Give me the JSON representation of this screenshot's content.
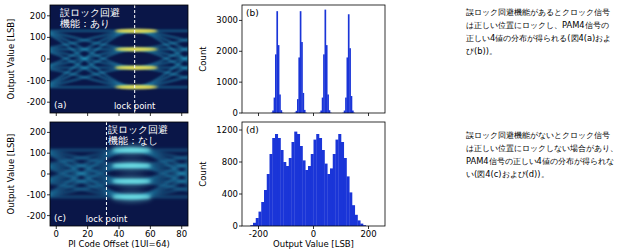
{
  "chart_data": [
    {
      "type": "eye_diagram",
      "panel_label": "(a)",
      "annotation": [
        "誤ロック回避",
        "機能：あり"
      ],
      "y_label": "Output Value [LSB]",
      "xlim": [
        -4,
        84
      ],
      "xticks": [
        0,
        20,
        40,
        60,
        80
      ],
      "ylim": [
        -250,
        250
      ],
      "yticks": [
        -200,
        -100,
        0,
        100,
        200
      ],
      "tick_labels": "y",
      "levels": [
        130,
        45,
        -40,
        -130
      ],
      "spread": 6,
      "crossings": [
        18,
        82
      ],
      "band_xrange": [
        38,
        64
      ],
      "lock_point": 50,
      "lock_point_label": "lock point",
      "color": "#2bb4d6",
      "colors": [
        "#ffe84a",
        "#ffe84a",
        "#ffe84a",
        "#ffe84a"
      ]
    },
    {
      "type": "histogram",
      "panel_label": "(b)",
      "y_label": "Count",
      "xlim": [
        -260,
        260
      ],
      "xticks": [
        -200,
        0,
        200
      ],
      "ylim": [
        0,
        3500
      ],
      "yticks": [
        0,
        1000,
        2000,
        3000
      ],
      "tick_labels": "y",
      "color": "#1a35d8",
      "bins": [
        -180,
        -175,
        -170,
        -165,
        -160,
        -155,
        -150,
        -145,
        -140,
        -135,
        -130,
        -125,
        -120,
        -115,
        -110,
        -105,
        -100,
        -95,
        -90,
        -85,
        -80,
        -75,
        -70,
        -65,
        -60,
        -55,
        -50,
        -45,
        -40,
        -35,
        -30,
        -25,
        -20,
        -15,
        -10,
        -5,
        0,
        5,
        10,
        15,
        20,
        25,
        30,
        35,
        40,
        45,
        50,
        55,
        60,
        65,
        70,
        75,
        80,
        85,
        90,
        95,
        100,
        105,
        110,
        115,
        120,
        125,
        130,
        135,
        140,
        145,
        150,
        155,
        160,
        165,
        170,
        175,
        180
      ],
      "values": [
        0,
        0,
        0,
        0,
        0,
        10,
        80,
        500,
        1900,
        3300,
        2200,
        600,
        90,
        10,
        0,
        0,
        0,
        0,
        0,
        0,
        0,
        0,
        10,
        70,
        450,
        1800,
        3300,
        2300,
        650,
        100,
        10,
        0,
        0,
        0,
        0,
        0,
        0,
        0,
        0,
        0,
        10,
        80,
        500,
        1900,
        3350,
        2200,
        600,
        90,
        10,
        0,
        0,
        0,
        0,
        0,
        0,
        0,
        0,
        10,
        80,
        500,
        1800,
        3200,
        2100,
        550,
        80,
        10,
        0,
        0,
        0,
        0,
        0,
        0
      ]
    },
    {
      "type": "eye_diagram",
      "panel_label": "(c)",
      "annotation": [
        "誤ロック回避",
        "機能：なし"
      ],
      "x_label": "PI Code Offset (1UI=64)",
      "y_label": "Output Value [LSB]",
      "xlim": [
        -4,
        84
      ],
      "xticks": [
        0,
        20,
        40,
        60,
        80
      ],
      "ylim": [
        -250,
        250
      ],
      "yticks": [
        -200,
        -100,
        0,
        100,
        200
      ],
      "levels": [
        115,
        40,
        -35,
        -110
      ],
      "spread": 16,
      "crossings": [
        16,
        80
      ],
      "band_xrange": [
        36,
        60
      ],
      "lock_point": 32,
      "lock_point_label": "lock point",
      "color": "#2bb4d6",
      "colors": [
        "#6fe0e6",
        "#6fe0e6",
        "#6fe0e6",
        "#6fe0e6"
      ]
    },
    {
      "type": "histogram",
      "panel_label": "(d)",
      "x_label": "Output Value [LSB]",
      "y_label": "Count",
      "xlim": [
        -260,
        260
      ],
      "xticks": [
        -200,
        0,
        200
      ],
      "ylim": [
        0,
        1300
      ],
      "yticks": [
        0,
        400,
        800,
        1200
      ],
      "color": "#1a35d8",
      "bins": [
        -240,
        -230,
        -220,
        -210,
        -200,
        -190,
        -180,
        -170,
        -160,
        -150,
        -140,
        -130,
        -120,
        -110,
        -100,
        -90,
        -80,
        -70,
        -60,
        -50,
        -40,
        -30,
        -20,
        -10,
        0,
        10,
        20,
        30,
        40,
        50,
        60,
        70,
        80,
        90,
        100,
        110,
        120,
        130,
        140,
        150,
        160,
        170,
        180,
        190,
        200
      ],
      "values": [
        0,
        10,
        40,
        100,
        180,
        300,
        450,
        650,
        900,
        1100,
        1150,
        1100,
        950,
        800,
        750,
        850,
        1050,
        1180,
        1150,
        1000,
        820,
        700,
        750,
        900,
        1080,
        1150,
        1100,
        950,
        780,
        650,
        720,
        900,
        1080,
        1150,
        1050,
        850,
        620,
        420,
        260,
        140,
        70,
        30,
        10,
        0
      ]
    }
  ],
  "text_blocks": [
    {
      "lines": [
        "誤ロック回避機能があるとクロック信号",
        "は正しい位置にロックし、PAM4信号の",
        "正しい4値の分布が得られる(図4(a)およ",
        "び(b))。"
      ]
    },
    {
      "lines": [
        "誤ロック回避機能がないとクロック信号",
        "は正しい位置にロックしない場合があり、",
        "PAM4信号の正しい4値の分布が得られな",
        "い(図4(c)および(d))。"
      ]
    }
  ]
}
